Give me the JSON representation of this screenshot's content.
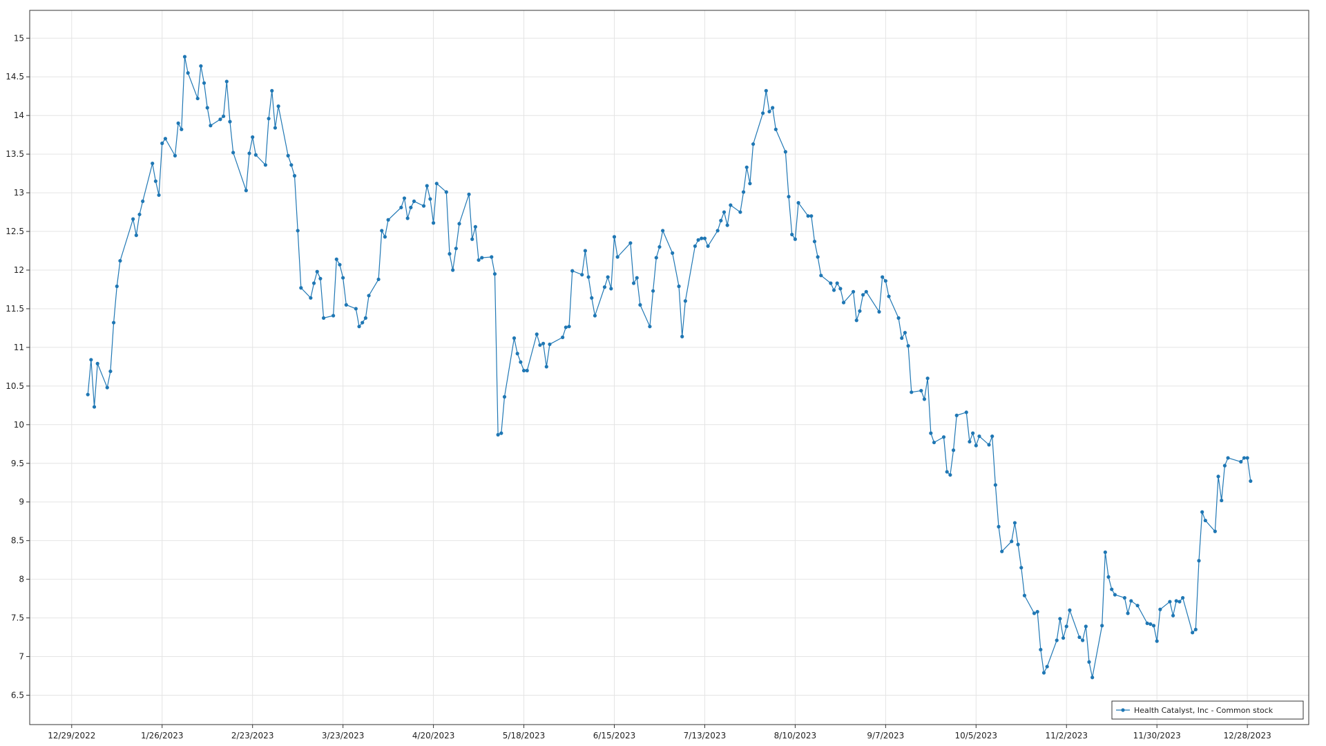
{
  "chart_data": {
    "type": "line",
    "x": [
      "1/3/2023",
      "1/4/2023",
      "1/5/2023",
      "1/6/2023",
      "1/9/2023",
      "1/10/2023",
      "1/11/2023",
      "1/12/2023",
      "1/13/2023",
      "1/17/2023",
      "1/18/2023",
      "1/19/2023",
      "1/20/2023",
      "1/23/2023",
      "1/24/2023",
      "1/25/2023",
      "1/26/2023",
      "1/27/2023",
      "1/30/2023",
      "1/31/2023",
      "2/1/2023",
      "2/2/2023",
      "2/3/2023",
      "2/6/2023",
      "2/7/2023",
      "2/8/2023",
      "2/9/2023",
      "2/10/2023",
      "2/13/2023",
      "2/14/2023",
      "2/15/2023",
      "2/16/2023",
      "2/17/2023",
      "2/21/2023",
      "2/22/2023",
      "2/23/2023",
      "2/24/2023",
      "2/27/2023",
      "2/28/2023",
      "3/1/2023",
      "3/2/2023",
      "3/3/2023",
      "3/6/2023",
      "3/7/2023",
      "3/8/2023",
      "3/9/2023",
      "3/10/2023",
      "3/13/2023",
      "3/14/2023",
      "3/15/2023",
      "3/16/2023",
      "3/17/2023",
      "3/20/2023",
      "3/21/2023",
      "3/22/2023",
      "3/23/2023",
      "3/24/2023",
      "3/27/2023",
      "3/28/2023",
      "3/29/2023",
      "3/30/2023",
      "3/31/2023",
      "4/3/2023",
      "4/4/2023",
      "4/5/2023",
      "4/6/2023",
      "4/10/2023",
      "4/11/2023",
      "4/12/2023",
      "4/13/2023",
      "4/14/2023",
      "4/17/2023",
      "4/18/2023",
      "4/19/2023",
      "4/20/2023",
      "4/21/2023",
      "4/24/2023",
      "4/25/2023",
      "4/26/2023",
      "4/27/2023",
      "4/28/2023",
      "5/1/2023",
      "5/2/2023",
      "5/3/2023",
      "5/4/2023",
      "5/5/2023",
      "5/8/2023",
      "5/9/2023",
      "5/10/2023",
      "5/11/2023",
      "5/12/2023",
      "5/15/2023",
      "5/16/2023",
      "5/17/2023",
      "5/18/2023",
      "5/19/2023",
      "5/22/2023",
      "5/23/2023",
      "5/24/2023",
      "5/25/2023",
      "5/26/2023",
      "5/30/2023",
      "5/31/2023",
      "6/1/2023",
      "6/2/2023",
      "6/5/2023",
      "6/6/2023",
      "6/7/2023",
      "6/8/2023",
      "6/9/2023",
      "6/12/2023",
      "6/13/2023",
      "6/14/2023",
      "6/15/2023",
      "6/16/2023",
      "6/20/2023",
      "6/21/2023",
      "6/22/2023",
      "6/23/2023",
      "6/26/2023",
      "6/27/2023",
      "6/28/2023",
      "6/29/2023",
      "6/30/2023",
      "7/3/2023",
      "7/5/2023",
      "7/6/2023",
      "7/7/2023",
      "7/10/2023",
      "7/11/2023",
      "7/12/2023",
      "7/13/2023",
      "7/14/2023",
      "7/17/2023",
      "7/18/2023",
      "7/19/2023",
      "7/20/2023",
      "7/21/2023",
      "7/24/2023",
      "7/25/2023",
      "7/26/2023",
      "7/27/2023",
      "7/28/2023",
      "7/31/2023",
      "8/1/2023",
      "8/2/2023",
      "8/3/2023",
      "8/4/2023",
      "8/7/2023",
      "8/8/2023",
      "8/9/2023",
      "8/10/2023",
      "8/11/2023",
      "8/14/2023",
      "8/15/2023",
      "8/16/2023",
      "8/17/2023",
      "8/18/2023",
      "8/21/2023",
      "8/22/2023",
      "8/23/2023",
      "8/24/2023",
      "8/25/2023",
      "8/28/2023",
      "8/29/2023",
      "8/30/2023",
      "8/31/2023",
      "9/1/2023",
      "9/5/2023",
      "9/6/2023",
      "9/7/2023",
      "9/8/2023",
      "9/11/2023",
      "9/12/2023",
      "9/13/2023",
      "9/14/2023",
      "9/15/2023",
      "9/18/2023",
      "9/19/2023",
      "9/20/2023",
      "9/21/2023",
      "9/22/2023",
      "9/25/2023",
      "9/26/2023",
      "9/27/2023",
      "9/28/2023",
      "9/29/2023",
      "10/2/2023",
      "10/3/2023",
      "10/4/2023",
      "10/5/2023",
      "10/6/2023",
      "10/9/2023",
      "10/10/2023",
      "10/11/2023",
      "10/12/2023",
      "10/13/2023",
      "10/16/2023",
      "10/17/2023",
      "10/18/2023",
      "10/19/2023",
      "10/20/2023",
      "10/23/2023",
      "10/24/2023",
      "10/25/2023",
      "10/26/2023",
      "10/27/2023",
      "10/30/2023",
      "10/31/2023",
      "11/1/2023",
      "11/2/2023",
      "11/3/2023",
      "11/6/2023",
      "11/7/2023",
      "11/8/2023",
      "11/9/2023",
      "11/10/2023",
      "11/13/2023",
      "11/14/2023",
      "11/15/2023",
      "11/16/2023",
      "11/17/2023",
      "11/20/2023",
      "11/21/2023",
      "11/22/2023",
      "11/24/2023",
      "11/27/2023",
      "11/28/2023",
      "11/29/2023",
      "11/30/2023",
      "12/1/2023",
      "12/4/2023",
      "12/5/2023",
      "12/6/2023",
      "12/7/2023",
      "12/8/2023",
      "12/11/2023",
      "12/12/2023",
      "12/13/2023",
      "12/14/2023",
      "12/15/2023",
      "12/18/2023",
      "12/19/2023",
      "12/20/2023",
      "12/21/2023",
      "12/22/2023",
      "12/26/2023",
      "12/27/2023",
      "12/28/2023",
      "12/29/2023"
    ],
    "series": [
      {
        "name": "Health Catalyst, Inc - Common stock",
        "color": "#1f77b4",
        "values": [
          10.39,
          10.84,
          10.23,
          10.79,
          10.48,
          10.69,
          11.32,
          11.79,
          12.12,
          12.66,
          12.45,
          12.72,
          12.89,
          13.38,
          13.15,
          12.97,
          13.64,
          13.7,
          13.48,
          13.9,
          13.82,
          14.76,
          14.55,
          14.22,
          14.64,
          14.42,
          14.1,
          13.87,
          13.95,
          13.99,
          14.44,
          13.92,
          13.52,
          13.03,
          13.51,
          13.72,
          13.49,
          13.36,
          13.96,
          14.32,
          13.84,
          14.12,
          13.48,
          13.36,
          13.22,
          12.51,
          11.77,
          11.64,
          11.83,
          11.98,
          11.89,
          11.38,
          11.41,
          12.14,
          12.07,
          11.9,
          11.55,
          11.5,
          11.27,
          11.32,
          11.38,
          11.67,
          11.88,
          12.51,
          12.43,
          12.65,
          12.81,
          12.93,
          12.67,
          12.81,
          12.89,
          12.83,
          13.09,
          12.92,
          12.61,
          13.12,
          13.01,
          12.21,
          12.0,
          12.28,
          12.6,
          12.98,
          12.4,
          12.56,
          12.13,
          12.16,
          12.17,
          11.95,
          9.87,
          9.89,
          10.36,
          11.12,
          10.92,
          10.81,
          10.7,
          10.7,
          11.17,
          11.03,
          11.05,
          10.75,
          11.04,
          11.13,
          11.26,
          11.27,
          11.99,
          11.94,
          12.25,
          11.91,
          11.64,
          11.41,
          11.78,
          11.91,
          11.76,
          12.43,
          12.17,
          12.35,
          11.83,
          11.9,
          11.55,
          11.27,
          11.73,
          12.16,
          12.3,
          12.51,
          12.22,
          11.79,
          11.14,
          11.6,
          12.31,
          12.39,
          12.41,
          12.41,
          12.31,
          12.51,
          12.64,
          12.75,
          12.58,
          12.84,
          12.75,
          13.01,
          13.33,
          13.12,
          13.63,
          14.03,
          14.32,
          14.05,
          14.1,
          13.82,
          13.53,
          12.95,
          12.46,
          12.4,
          12.87,
          12.7,
          12.7,
          12.37,
          12.17,
          11.93,
          11.83,
          11.74,
          11.83,
          11.76,
          11.58,
          11.72,
          11.35,
          11.47,
          11.68,
          11.72,
          11.46,
          11.91,
          11.86,
          11.66,
          11.38,
          11.12,
          11.19,
          11.02,
          10.42,
          10.44,
          10.33,
          10.6,
          9.89,
          9.77,
          9.84,
          9.39,
          9.35,
          9.67,
          10.12,
          10.16,
          9.78,
          9.89,
          9.73,
          9.85,
          9.74,
          9.85,
          9.22,
          8.68,
          8.36,
          8.49,
          8.73,
          8.45,
          8.15,
          7.79,
          7.56,
          7.58,
          7.09,
          6.79,
          6.87,
          7.21,
          7.49,
          7.24,
          7.39,
          7.6,
          7.25,
          7.21,
          7.39,
          6.93,
          6.73,
          7.4,
          8.35,
          8.03,
          7.87,
          7.8,
          7.76,
          7.56,
          7.72,
          7.66,
          7.43,
          7.42,
          7.4,
          7.2,
          7.61,
          7.71,
          7.53,
          7.72,
          7.71,
          7.76,
          7.31,
          7.35,
          8.24,
          8.87,
          8.76,
          8.62,
          9.33,
          9.02,
          9.47,
          9.57,
          9.52,
          9.57,
          9.57,
          9.27
        ]
      }
    ],
    "xlim": [
      "12/16/2022",
      "1/16/2024"
    ],
    "xticks": [
      "12/29/2022",
      "1/26/2023",
      "2/23/2023",
      "3/23/2023",
      "4/20/2023",
      "5/18/2023",
      "6/15/2023",
      "7/13/2023",
      "8/10/2023",
      "9/7/2023",
      "10/5/2023",
      "11/2/2023",
      "11/30/2023",
      "12/28/2023"
    ],
    "ylim": [
      6.12,
      15.36
    ],
    "yticks": [
      6.5,
      7,
      7.5,
      8,
      8.5,
      9,
      9.5,
      10,
      10.5,
      11,
      11.5,
      12,
      12.5,
      13,
      13.5,
      14,
      14.5,
      15
    ],
    "grid": true,
    "legend": "bottom-right",
    "markers": true
  }
}
